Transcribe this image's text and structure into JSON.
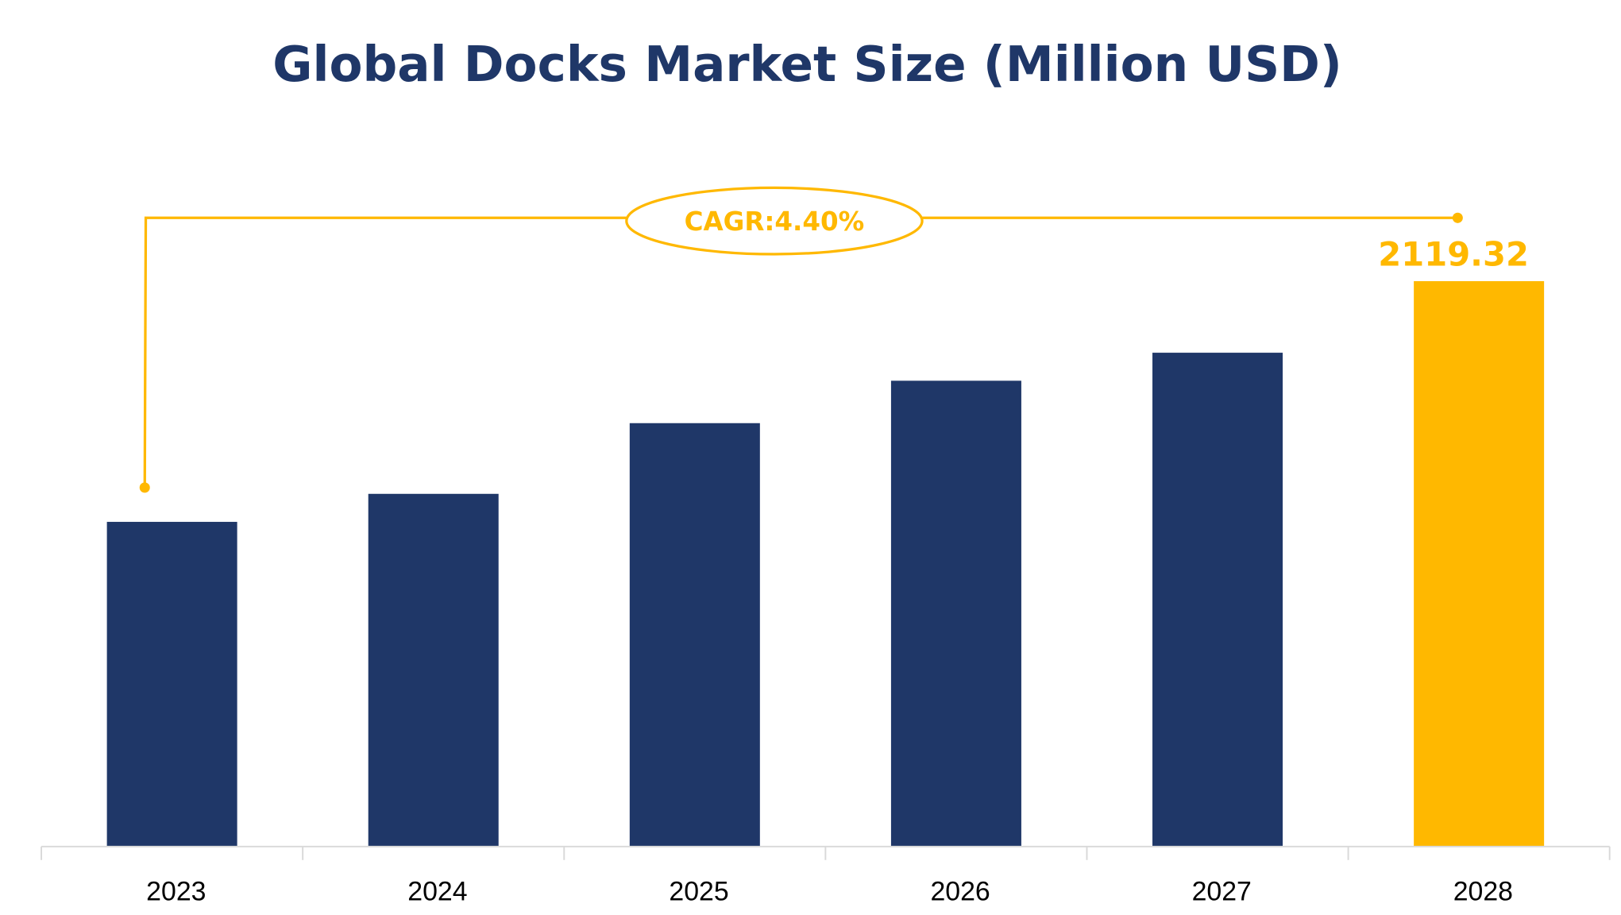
{
  "chart_data": {
    "type": "bar",
    "title": "Global Docks Market Size (Million USD)",
    "categories": [
      "2023",
      "2024",
      "2025",
      "2026",
      "2027",
      "2028"
    ],
    "values": [
      1217,
      1322,
      1587,
      1746,
      1851,
      2119.32
    ],
    "data_labels": {
      "2028": "2119.32"
    },
    "xlabel": "",
    "ylabel": "",
    "ylim": [
      0,
      2119.32
    ],
    "grid": false,
    "legend": "none",
    "annotation": "CAGR:4.40%",
    "colors": {
      "bar": "#1F3768",
      "highlight": "#FFB800",
      "title": "#1F3768",
      "axis": "#D9D9D9"
    }
  }
}
